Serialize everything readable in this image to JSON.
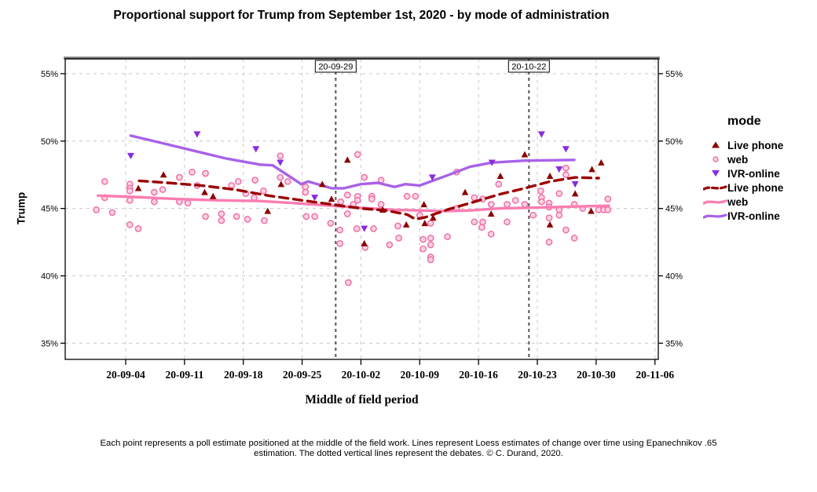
{
  "chart_data": {
    "type": "scatter",
    "title": "Proportional support for Trump from September 1st, 2020 - by mode of administration",
    "xlabel": "Middle of field period",
    "ylabel": "Trump",
    "x_domain_days": [
      -4.2,
      66.4
    ],
    "y_domain": [
      33.8,
      56.1
    ],
    "x_ticks": [
      {
        "label": "20-09-04",
        "d": 3
      },
      {
        "label": "20-09-11",
        "d": 10
      },
      {
        "label": "20-09-18",
        "d": 17
      },
      {
        "label": "20-09-25",
        "d": 24
      },
      {
        "label": "20-10-02",
        "d": 31
      },
      {
        "label": "20-10-09",
        "d": 38
      },
      {
        "label": "20-10-16",
        "d": 45
      },
      {
        "label": "20-10-23",
        "d": 52
      },
      {
        "label": "20-10-30",
        "d": 59
      },
      {
        "label": "20-11-06",
        "d": 66
      }
    ],
    "y_ticks": [
      {
        "label": "35%",
        "v": 35
      },
      {
        "label": "40%",
        "v": 40
      },
      {
        "label": "45%",
        "v": 45
      },
      {
        "label": "50%",
        "v": 50
      },
      {
        "label": "55%",
        "v": 55
      }
    ],
    "debates": [
      {
        "label": "20-09-29",
        "d": 28
      },
      {
        "label": "20-10-22",
        "d": 51
      }
    ],
    "series": [
      {
        "name": "web",
        "kind": "points",
        "marker": "circle",
        "color": "#F070A9",
        "fill": "#FBD3E3",
        "points": [
          [
            -0.5,
            44.9
          ],
          [
            0.5,
            47.0
          ],
          [
            0.5,
            45.8
          ],
          [
            1.4,
            44.7
          ],
          [
            3.5,
            46.8
          ],
          [
            3.5,
            46.5
          ],
          [
            3.5,
            46.3
          ],
          [
            3.5,
            45.6
          ],
          [
            3.5,
            43.8
          ],
          [
            4.5,
            43.5
          ],
          [
            6.4,
            46.2
          ],
          [
            6.4,
            45.5
          ],
          [
            7.4,
            46.4
          ],
          [
            9.4,
            47.3
          ],
          [
            9.4,
            45.5
          ],
          [
            10.4,
            45.4
          ],
          [
            10.9,
            47.7
          ],
          [
            11.5,
            46.7
          ],
          [
            12.5,
            47.6
          ],
          [
            12.5,
            44.4
          ],
          [
            14.4,
            44.6
          ],
          [
            14.4,
            44.1
          ],
          [
            15.6,
            46.7
          ],
          [
            16.2,
            44.4
          ],
          [
            16.4,
            47.0
          ],
          [
            17.3,
            46.1
          ],
          [
            17.5,
            44.2
          ],
          [
            18.3,
            45.8
          ],
          [
            18.4,
            47.1
          ],
          [
            19.4,
            46.3
          ],
          [
            19.5,
            44.1
          ],
          [
            21.4,
            48.9
          ],
          [
            21.4,
            47.3
          ],
          [
            22.3,
            47.0
          ],
          [
            24.4,
            46.6
          ],
          [
            24.4,
            46.2
          ],
          [
            24.5,
            44.4
          ],
          [
            25.5,
            44.4
          ],
          [
            27.4,
            43.9
          ],
          [
            28.5,
            43.4
          ],
          [
            28.5,
            42.4
          ],
          [
            28.6,
            45.5
          ],
          [
            29.4,
            46.0
          ],
          [
            29.4,
            44.6
          ],
          [
            29.5,
            39.5
          ],
          [
            30.1,
            45.3
          ],
          [
            30.5,
            43.5
          ],
          [
            30.6,
            49.0
          ],
          [
            30.6,
            45.9
          ],
          [
            30.6,
            45.6
          ],
          [
            31.4,
            47.3
          ],
          [
            31.5,
            42.1
          ],
          [
            32.3,
            45.9
          ],
          [
            32.3,
            45.7
          ],
          [
            32.5,
            43.5
          ],
          [
            33.4,
            47.1
          ],
          [
            33.4,
            45.3
          ],
          [
            34.4,
            42.3
          ],
          [
            35.4,
            43.7
          ],
          [
            35.5,
            42.8
          ],
          [
            36.5,
            45.9
          ],
          [
            37.5,
            45.9
          ],
          [
            38.0,
            44.5
          ],
          [
            38.4,
            42.7
          ],
          [
            38.4,
            42.0
          ],
          [
            39.3,
            43.9
          ],
          [
            39.3,
            42.8
          ],
          [
            39.3,
            42.3
          ],
          [
            39.3,
            41.4
          ],
          [
            39.3,
            41.2
          ],
          [
            41.3,
            42.9
          ],
          [
            42.4,
            47.7
          ],
          [
            42.4,
            45.0
          ],
          [
            44.5,
            45.8
          ],
          [
            44.5,
            44.0
          ],
          [
            45.4,
            43.6
          ],
          [
            45.5,
            45.7
          ],
          [
            45.5,
            44.0
          ],
          [
            46.5,
            45.3
          ],
          [
            46.5,
            43.1
          ],
          [
            47.4,
            46.8
          ],
          [
            48.4,
            45.3
          ],
          [
            48.4,
            44.0
          ],
          [
            49.4,
            45.6
          ],
          [
            50.5,
            45.3
          ],
          [
            51.5,
            44.5
          ],
          [
            52.4,
            46.3
          ],
          [
            52.5,
            45.8
          ],
          [
            52.5,
            45.5
          ],
          [
            53.4,
            45.4
          ],
          [
            53.4,
            45.1
          ],
          [
            53.4,
            44.3
          ],
          [
            53.4,
            42.5
          ],
          [
            54.6,
            46.1
          ],
          [
            54.6,
            44.9
          ],
          [
            54.6,
            44.5
          ],
          [
            55.4,
            48.0
          ],
          [
            55.4,
            47.5
          ],
          [
            55.4,
            43.4
          ],
          [
            56.4,
            45.3
          ],
          [
            56.4,
            42.8
          ],
          [
            57.4,
            45.0
          ],
          [
            59.3,
            44.9
          ],
          [
            59.9,
            44.9
          ],
          [
            60.4,
            45.7
          ],
          [
            60.4,
            44.9
          ]
        ]
      },
      {
        "name": "Live phone",
        "kind": "points",
        "marker": "triangle-up",
        "color": "#8B0000",
        "points": [
          [
            4.5,
            46.5
          ],
          [
            7.5,
            47.5
          ],
          [
            12.4,
            46.2
          ],
          [
            13.4,
            45.9
          ],
          [
            19.9,
            44.8
          ],
          [
            21.5,
            46.8
          ],
          [
            26.4,
            46.8
          ],
          [
            27.5,
            45.7
          ],
          [
            29.4,
            48.6
          ],
          [
            31.4,
            42.4
          ],
          [
            33.6,
            44.9
          ],
          [
            36.4,
            43.8
          ],
          [
            38.5,
            45.3
          ],
          [
            38.6,
            43.9
          ],
          [
            39.6,
            44.3
          ],
          [
            43.4,
            46.2
          ],
          [
            46.5,
            44.6
          ],
          [
            47.6,
            47.4
          ],
          [
            50.5,
            49.0
          ],
          [
            53.5,
            47.4
          ],
          [
            53.5,
            43.8
          ],
          [
            56.5,
            46.1
          ],
          [
            58.4,
            44.8
          ],
          [
            58.5,
            47.9
          ],
          [
            59.6,
            48.4
          ]
        ]
      },
      {
        "name": "IVR-online",
        "kind": "points",
        "marker": "triangle-down",
        "color": "#8A2BE0",
        "points": [
          [
            3.6,
            48.9
          ],
          [
            11.5,
            50.5
          ],
          [
            18.5,
            49.4
          ],
          [
            21.4,
            48.4
          ],
          [
            25.5,
            45.8
          ],
          [
            31.4,
            43.5
          ],
          [
            39.5,
            47.3
          ],
          [
            46.6,
            48.4
          ],
          [
            52.5,
            50.5
          ],
          [
            54.6,
            47.9
          ],
          [
            55.4,
            49.4
          ],
          [
            56.5,
            46.8
          ]
        ]
      },
      {
        "name": "web",
        "kind": "loess",
        "style": "solid",
        "color": "#FB7DB1",
        "points": [
          [
            -0.3,
            45.95
          ],
          [
            4,
            45.85
          ],
          [
            9,
            45.7
          ],
          [
            14,
            45.6
          ],
          [
            19,
            45.55
          ],
          [
            23,
            45.4
          ],
          [
            27.5,
            45.2
          ],
          [
            31,
            45.05
          ],
          [
            35,
            44.9
          ],
          [
            38,
            44.85
          ],
          [
            41,
            44.8
          ],
          [
            44,
            44.85
          ],
          [
            47.5,
            45.0
          ],
          [
            51,
            45.05
          ],
          [
            54,
            45.1
          ],
          [
            57,
            45.15
          ],
          [
            60.5,
            45.2
          ]
        ]
      },
      {
        "name": "Live phone",
        "kind": "loess",
        "style": "dashed",
        "color": "#9B0000",
        "points": [
          [
            4.6,
            47.05
          ],
          [
            8,
            46.9
          ],
          [
            12,
            46.7
          ],
          [
            16,
            46.4
          ],
          [
            20,
            45.95
          ],
          [
            24,
            45.6
          ],
          [
            27.5,
            45.3
          ],
          [
            31,
            45.0
          ],
          [
            34,
            44.85
          ],
          [
            36.5,
            44.55
          ],
          [
            37.5,
            44.2
          ],
          [
            38.7,
            44.35
          ],
          [
            41.5,
            44.95
          ],
          [
            44,
            45.4
          ],
          [
            47.5,
            46.05
          ],
          [
            50.5,
            46.5
          ],
          [
            53.5,
            47.0
          ],
          [
            56.5,
            47.3
          ],
          [
            59.3,
            47.25
          ]
        ]
      },
      {
        "name": "IVR-online",
        "kind": "loess",
        "style": "solid",
        "color": "#A862E8",
        "points": [
          [
            3.6,
            50.4
          ],
          [
            7,
            49.9
          ],
          [
            11,
            49.3
          ],
          [
            15,
            48.7
          ],
          [
            19,
            48.25
          ],
          [
            20.5,
            48.2
          ],
          [
            23.9,
            46.8
          ],
          [
            24.7,
            47.0
          ],
          [
            27.5,
            46.5
          ],
          [
            29,
            46.5
          ],
          [
            31,
            46.8
          ],
          [
            33,
            46.9
          ],
          [
            35,
            46.6
          ],
          [
            36.3,
            46.8
          ],
          [
            38,
            46.7
          ],
          [
            41.5,
            47.5
          ],
          [
            44,
            48.1
          ],
          [
            46.6,
            48.4
          ],
          [
            50.6,
            48.55
          ],
          [
            56.4,
            48.6
          ]
        ]
      }
    ]
  },
  "legend": {
    "title": "mode",
    "items": [
      {
        "label": "Live phone"
      },
      {
        "label": "web"
      },
      {
        "label": "IVR-online"
      },
      {
        "label": "Live phone"
      },
      {
        "label": "web"
      },
      {
        "label": "IVR-online"
      }
    ]
  },
  "footnote": {
    "line1": "Each point represents a poll estimate positioned at the middle of the field work. Lines represent Loess estimates of change over time using Epanechnikov .65",
    "line2": "estimation. The dotted vertical lines represent the debates. © C. Durand, 2020."
  }
}
